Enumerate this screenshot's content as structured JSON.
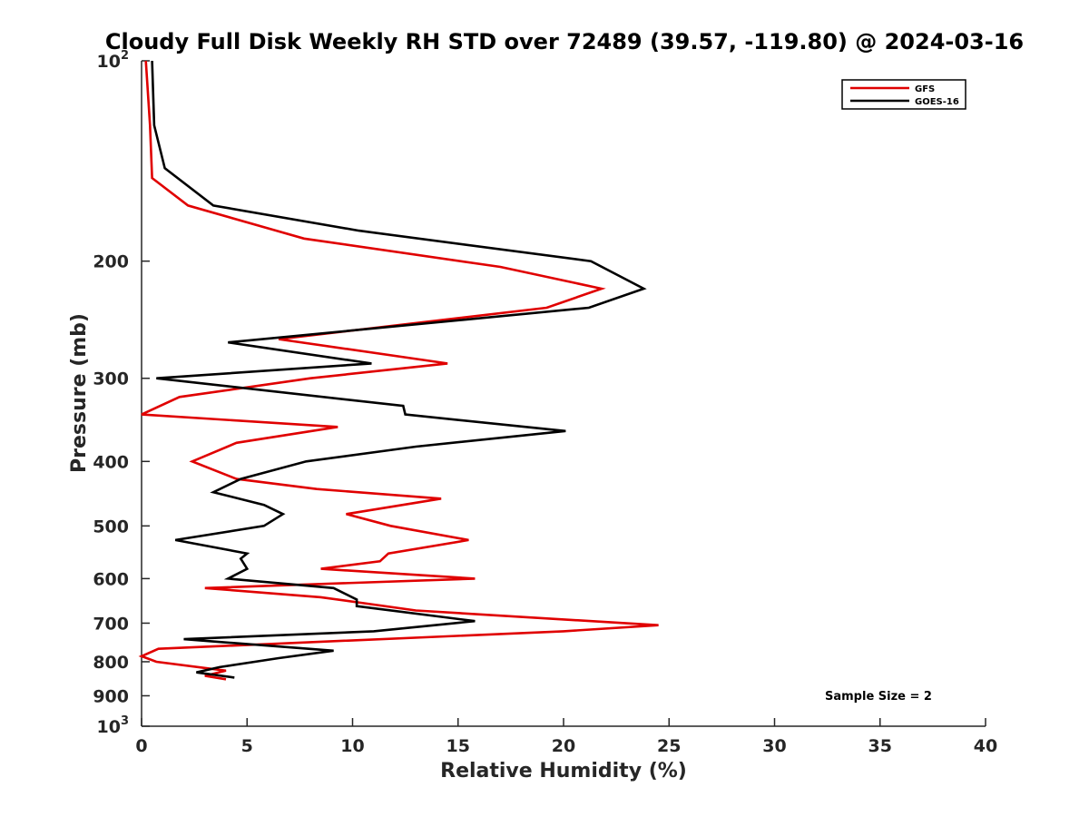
{
  "chart_data": {
    "type": "line",
    "title": "Cloudy Full Disk Weekly RH STD over 72489 (39.57, -119.80) @ 2024-03-16",
    "xlabel": "Relative Humidity (%)",
    "ylabel": "Pressure (mb)",
    "xlim": [
      0,
      40
    ],
    "ylim": [
      100,
      1000
    ],
    "y_scale": "log",
    "y_reversed": true,
    "x_ticks": [
      "0",
      "5",
      "10",
      "15",
      "20",
      "25",
      "30",
      "35",
      "40"
    ],
    "y_ticks": [
      {
        "value": 100,
        "base": "10",
        "exp": "2"
      },
      {
        "value": 200,
        "label": "200"
      },
      {
        "value": 300,
        "label": "300"
      },
      {
        "value": 400,
        "label": "400"
      },
      {
        "value": 500,
        "label": "500"
      },
      {
        "value": 600,
        "label": "600"
      },
      {
        "value": 700,
        "label": "700"
      },
      {
        "value": 800,
        "label": "800"
      },
      {
        "value": 900,
        "label": "900"
      },
      {
        "value": 1000,
        "base": "10",
        "exp": "3"
      }
    ],
    "legend_position": "top-right",
    "grid": false,
    "annotation": "Sample Size = 2",
    "series": [
      {
        "name": "GFS",
        "color": "#e00000",
        "points": [
          [
            0.2,
            100
          ],
          [
            0.4,
            125
          ],
          [
            0.5,
            150
          ],
          [
            2.2,
            165
          ],
          [
            7.7,
            185
          ],
          [
            17.0,
            204
          ],
          [
            21.8,
            220
          ],
          [
            19.2,
            235
          ],
          [
            6.5,
            262
          ],
          [
            14.5,
            285
          ],
          [
            8.0,
            300
          ],
          [
            1.8,
            320
          ],
          [
            0.0,
            340
          ],
          [
            9.3,
            355
          ],
          [
            4.5,
            375
          ],
          [
            2.4,
            400
          ],
          [
            4.5,
            425
          ],
          [
            8.3,
            440
          ],
          [
            14.2,
            455
          ],
          [
            9.7,
            480
          ],
          [
            11.8,
            500
          ],
          [
            15.5,
            525
          ],
          [
            11.7,
            550
          ],
          [
            11.3,
            565
          ],
          [
            8.5,
            580
          ],
          [
            15.8,
            600
          ],
          [
            3.0,
            620
          ],
          [
            8.5,
            640
          ],
          [
            13.0,
            670
          ],
          [
            24.5,
            705
          ],
          [
            20.0,
            720
          ],
          [
            0.8,
            765
          ],
          [
            0.0,
            785
          ],
          [
            0.7,
            800
          ],
          [
            4.0,
            825
          ],
          [
            3.0,
            840
          ],
          [
            4.0,
            850
          ]
        ]
      },
      {
        "name": "GOES-16",
        "color": "#000000",
        "points": [
          [
            0.5,
            100
          ],
          [
            0.6,
            125
          ],
          [
            1.1,
            145
          ],
          [
            3.4,
            165
          ],
          [
            10.3,
            180
          ],
          [
            21.3,
            200
          ],
          [
            23.8,
            220
          ],
          [
            21.2,
            235
          ],
          [
            4.1,
            265
          ],
          [
            10.9,
            285
          ],
          [
            0.7,
            300
          ],
          [
            12.4,
            330
          ],
          [
            12.5,
            340
          ],
          [
            20.1,
            360
          ],
          [
            13.0,
            380
          ],
          [
            7.8,
            400
          ],
          [
            4.7,
            425
          ],
          [
            3.4,
            445
          ],
          [
            5.8,
            465
          ],
          [
            6.7,
            480
          ],
          [
            5.8,
            500
          ],
          [
            1.6,
            525
          ],
          [
            5.0,
            550
          ],
          [
            4.7,
            560
          ],
          [
            5.0,
            580
          ],
          [
            4.1,
            600
          ],
          [
            9.1,
            620
          ],
          [
            10.2,
            645
          ],
          [
            10.2,
            660
          ],
          [
            15.8,
            695
          ],
          [
            11.0,
            720
          ],
          [
            2.0,
            740
          ],
          [
            9.1,
            770
          ],
          [
            6.5,
            790
          ],
          [
            3.7,
            815
          ],
          [
            2.6,
            830
          ],
          [
            4.4,
            845
          ]
        ]
      }
    ]
  }
}
